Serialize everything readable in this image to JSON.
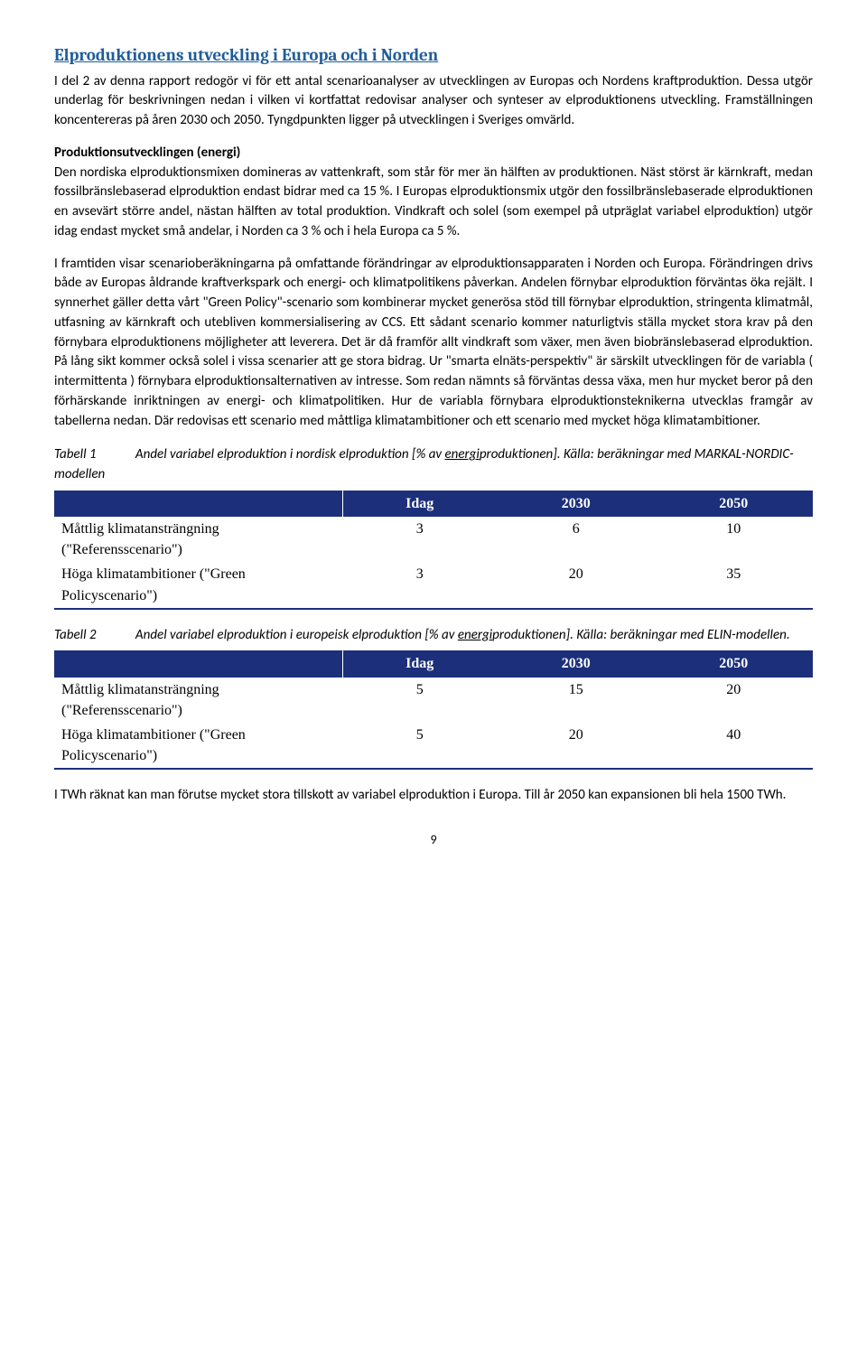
{
  "section_title": "Elproduktionens utveckling i Europa och i Norden",
  "para1": "I del 2 av denna rapport redogör vi för ett antal scenarioanalyser av utvecklingen av Europas och Nordens kraftproduktion. Dessa utgör underlag för beskrivningen nedan i vilken vi kortfattat redovisar analyser och synteser av elproduktionens utveckling. Framställningen koncentereras på åren 2030 och 2050. Tyngdpunkten ligger på utvecklingen i Sveriges omvärld.",
  "subhead1": "Produktionsutvecklingen (energi)",
  "para2": "Den nordiska elproduktionsmixen domineras av vattenkraft, som står för mer än hälften av produktionen. Näst störst är kärnkraft, medan fossilbränslebaserad elproduktion endast bidrar med ca 15 %. I Europas  elproduktionsmix utgör den fossilbränslebaserade elproduktionen en avsevärt större andel, nästan hälften av total produktion. Vindkraft och solel (som exempel på utpräglat variabel elproduktion) utgör idag endast mycket små andelar, i Norden ca 3 % och i hela Europa ca 5 %.",
  "para3": "I framtiden visar scenarioberäkningarna på omfattande förändringar av elproduktionsapparaten i Norden och Europa. Förändringen drivs både av Europas åldrande kraftverkspark och energi- och klimatpolitikens påverkan. Andelen förnybar elproduktion förväntas öka rejält. I synnerhet gäller detta vårt \"Green Policy\"-scenario som kombinerar mycket generösa stöd till förnybar elproduktion, stringenta klimatmål, utfasning av kärnkraft och utebliven kommersialisering av CCS. Ett sådant scenario kommer naturligtvis ställa mycket stora krav på den förnybara elproduktionens möjligheter att leverera. Det är då framför allt vindkraft som växer, men även biobränslebaserad elproduktion. På lång sikt kommer också solel i vissa scenarier att ge stora bidrag. Ur \"smarta elnäts-perspektiv\" är särskilt utvecklingen för de variabla ( intermittenta ) förnybara elproduktionsalternativen av intresse. Som redan nämnts så förväntas dessa växa, men hur mycket beror på den förhärskande inriktningen av energi- och klimatpolitiken. Hur de variabla förnybara elproduktionsteknikerna utvecklas framgår av tabellerna nedan. Där redovisas ett scenario med måttliga klimatambitioner och ett scenario med mycket höga klimatambitioner.",
  "table1": {
    "label": "Tabell 1",
    "caption_before": "Andel variabel elproduktion i nordisk elproduktion [% av ",
    "caption_underlined": "energi",
    "caption_after": "produktionen]. Källa: beräkningar med MARKAL-NORDIC-modellen",
    "columns": [
      "",
      "Idag",
      "2030",
      "2050"
    ],
    "rows": [
      {
        "label": "Måttlig klimatansträngning (\"Referensscenario\")",
        "values": [
          "3",
          "6",
          "10"
        ]
      },
      {
        "label": "Höga klimatambitioner (\"Green Policyscenario\")",
        "values": [
          "3",
          "20",
          "35"
        ]
      }
    ],
    "header_bg": "#1b2f7a",
    "header_fg": "#ffffff",
    "rule_color": "#1b2f7a"
  },
  "table2": {
    "label": "Tabell 2",
    "caption_before": "Andel variabel elproduktion i europeisk elproduktion [% av ",
    "caption_underlined": "energi",
    "caption_after": "produktionen]. Källa: beräkningar med ELIN-modellen.",
    "columns": [
      "",
      "Idag",
      "2030",
      "2050"
    ],
    "rows": [
      {
        "label": "Måttlig klimatansträngning (\"Referensscenario\")",
        "values": [
          "5",
          "15",
          "20"
        ]
      },
      {
        "label": "Höga klimatambitioner (\"Green Policyscenario\")",
        "values": [
          "5",
          "20",
          "40"
        ]
      }
    ],
    "header_bg": "#1b2f7a",
    "header_fg": "#ffffff",
    "rule_color": "#1b2f7a"
  },
  "para4": "I TWh räknat kan man förutse mycket stora tillskott av variabel elproduktion i Europa. Till år 2050 kan expansionen bli hela 1500 TWh.",
  "page_number": "9"
}
